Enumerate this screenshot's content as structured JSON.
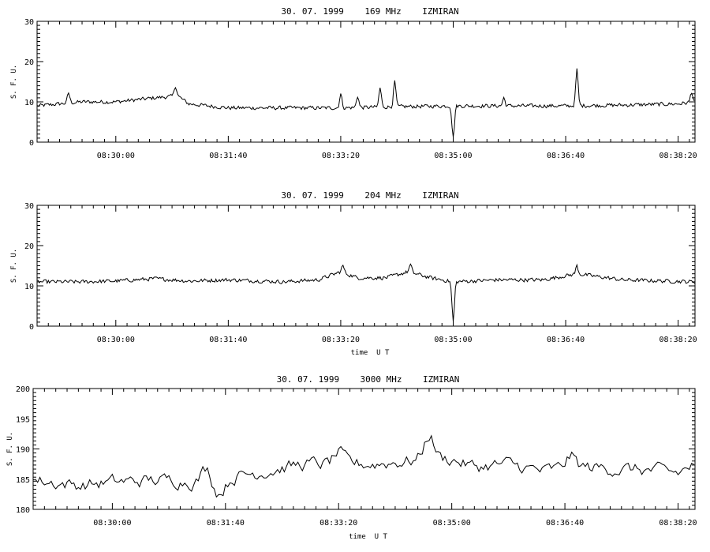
{
  "chart_data": [
    {
      "type": "line",
      "title": "30. 07. 1999    169 MHz    IZMIRAN",
      "ylabel": "S. F. U.",
      "xlabel": "",
      "ylim": [
        0,
        30
      ],
      "yticks": [
        "0",
        "10",
        "20",
        "30"
      ],
      "xticks": [
        "08:30:00",
        "08:31:40",
        "08:33:20",
        "08:35:00",
        "08:36:40",
        "08:38:20"
      ],
      "series": [
        {
          "base": [
            [
              "08:28:50",
              9.0
            ],
            [
              "08:29:30",
              10.0
            ],
            [
              "08:30:00",
              10.0
            ],
            [
              "08:30:35",
              11.0
            ],
            [
              "08:30:55",
              11.5
            ],
            [
              "08:31:05",
              9.5
            ],
            [
              "08:31:40",
              8.5
            ],
            [
              "08:32:30",
              8.5
            ],
            [
              "08:33:20",
              8.5
            ],
            [
              "08:34:10",
              8.8
            ],
            [
              "08:35:00",
              9.0
            ],
            [
              "08:35:40",
              9.0
            ],
            [
              "08:36:40",
              9.0
            ],
            [
              "08:37:30",
              9.2
            ],
            [
              "08:38:20",
              9.5
            ],
            [
              "08:38:35",
              10.0
            ]
          ],
          "peaks": [
            [
              "08:29:18",
              12.2
            ],
            [
              "08:30:53",
              14.0
            ],
            [
              "08:33:20",
              12.0
            ],
            [
              "08:33:35",
              11.5
            ],
            [
              "08:33:55",
              13.5
            ],
            [
              "08:34:08",
              15.0
            ],
            [
              "08:35:00",
              1.0
            ],
            [
              "08:35:45",
              11.0
            ],
            [
              "08:36:50",
              18.0
            ],
            [
              "08:38:32",
              12.5
            ]
          ]
        }
      ]
    },
    {
      "type": "line",
      "title": "30. 07. 1999    204 MHz    IZMIRAN",
      "ylabel": "S. F. U.",
      "xlabel": "time  U T",
      "ylim": [
        0,
        30
      ],
      "yticks": [
        "0",
        "10",
        "20",
        "30"
      ],
      "xticks": [
        "08:30:00",
        "08:31:40",
        "08:33:20",
        "08:35:00",
        "08:36:40",
        "08:38:20"
      ],
      "series": [
        {
          "base": [
            [
              "08:28:50",
              11.0
            ],
            [
              "08:29:30",
              11.0
            ],
            [
              "08:30:00",
              11.2
            ],
            [
              "08:30:35",
              11.8
            ],
            [
              "08:31:05",
              11.2
            ],
            [
              "08:31:40",
              11.5
            ],
            [
              "08:32:30",
              11.0
            ],
            [
              "08:33:00",
              11.5
            ],
            [
              "08:33:20",
              13.5
            ],
            [
              "08:33:35",
              12.0
            ],
            [
              "08:34:00",
              12.0
            ],
            [
              "08:34:20",
              13.5
            ],
            [
              "08:34:40",
              12.0
            ],
            [
              "08:35:00",
              11.0
            ],
            [
              "08:35:40",
              11.5
            ],
            [
              "08:36:20",
              11.5
            ],
            [
              "08:36:50",
              13.0
            ],
            [
              "08:37:30",
              11.5
            ],
            [
              "08:38:35",
              11.0
            ]
          ],
          "peaks": [
            [
              "08:33:22",
              15.0
            ],
            [
              "08:34:22",
              15.2
            ],
            [
              "08:35:00",
              1.0
            ],
            [
              "08:36:50",
              15.0
            ]
          ]
        }
      ]
    },
    {
      "type": "line",
      "title": "30. 07. 1999    3000 MHz    IZMIRAN",
      "ylabel": "S. F. U.",
      "xlabel": "time  U T",
      "ylim": [
        180,
        200
      ],
      "yticks": [
        "180",
        "185",
        "190",
        "195",
        "200"
      ],
      "xticks": [
        "08:30:00",
        "08:31:40",
        "08:33:20",
        "08:35:00",
        "08:36:40",
        "08:38:20"
      ],
      "series": [
        {
          "base": [
            [
              "08:28:50",
              184.8
            ],
            [
              "08:29:30",
              184.0
            ],
            [
              "08:30:00",
              184.5
            ],
            [
              "08:30:35",
              184.8
            ],
            [
              "08:31:05",
              184.8
            ],
            [
              "08:31:30",
              184.0
            ],
            [
              "08:31:50",
              185.5
            ],
            [
              "08:32:20",
              186.5
            ],
            [
              "08:32:50",
              187.5
            ],
            [
              "08:33:20",
              187.5
            ],
            [
              "08:33:50",
              187.5
            ],
            [
              "08:34:20",
              188.0
            ],
            [
              "08:34:45",
              188.5
            ],
            [
              "08:35:00",
              188.3
            ],
            [
              "08:35:20",
              187.0
            ],
            [
              "08:35:50",
              187.5
            ],
            [
              "08:36:20",
              186.3
            ],
            [
              "08:36:50",
              187.0
            ],
            [
              "08:37:20",
              186.8
            ],
            [
              "08:37:50",
              186.5
            ],
            [
              "08:38:20",
              186.0
            ],
            [
              "08:38:35",
              187.5
            ]
          ],
          "peaks": [
            [
              "08:34:40",
              192.3
            ],
            [
              "08:31:35",
              182.8
            ],
            [
              "08:31:23",
              186.7
            ],
            [
              "08:33:20",
              189.3
            ],
            [
              "08:36:45",
              188.8
            ]
          ]
        }
      ]
    }
  ]
}
